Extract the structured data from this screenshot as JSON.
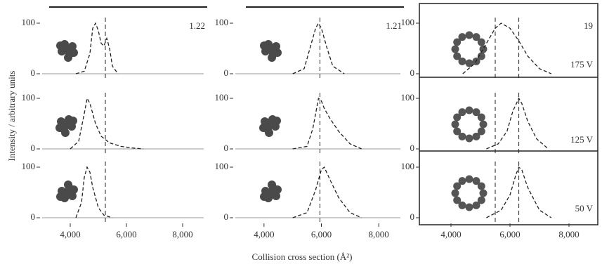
{
  "figure": {
    "ylabel": "Intensity / arbitrary units",
    "xlabel": "Collision cross section (Å²)"
  },
  "chart_data": [
    {
      "type": "line",
      "line_style": "dashed",
      "color": "#222",
      "annotations": [
        "1.22"
      ],
      "x": [
        4200,
        4500,
        4700,
        4800,
        4900,
        5000,
        5100,
        5200,
        5300,
        5400,
        5500,
        5700
      ],
      "values": [
        0,
        5,
        40,
        90,
        100,
        85,
        60,
        55,
        70,
        50,
        15,
        0
      ],
      "xlim": [
        3000,
        9000
      ],
      "ylim": [
        0,
        100
      ],
      "yticks": [
        0,
        100
      ],
      "reference_lines": [
        5250
      ]
    },
    {
      "type": "line",
      "line_style": "dashed",
      "color": "#222",
      "x": [
        4000,
        4300,
        4500,
        4600,
        4700,
        4900,
        5100,
        5400,
        5800,
        6200,
        6600
      ],
      "values": [
        0,
        15,
        70,
        100,
        90,
        50,
        25,
        12,
        5,
        2,
        0
      ],
      "xlim": [
        3000,
        9000
      ],
      "ylim": [
        0,
        100
      ],
      "yticks": [
        0,
        100
      ],
      "reference_lines": [
        5250
      ]
    },
    {
      "type": "line",
      "line_style": "dashed",
      "color": "#222",
      "x": [
        4200,
        4400,
        4500,
        4600,
        4700,
        4800,
        5000,
        5200,
        5500
      ],
      "values": [
        0,
        30,
        80,
        100,
        90,
        60,
        20,
        5,
        0
      ],
      "xlim": [
        3000,
        9000
      ],
      "ylim": [
        0,
        100
      ],
      "yticks": [
        0,
        100
      ],
      "xticks": [
        {
          "value": 4000,
          "label": "4,000"
        },
        {
          "value": 6000,
          "label": "6,000"
        },
        {
          "value": 8000,
          "label": "8,000"
        }
      ],
      "reference_lines": [
        5250
      ]
    },
    {
      "type": "line",
      "line_style": "dashed",
      "color": "#222",
      "annotations": [
        "1.21"
      ],
      "x": [
        5000,
        5400,
        5600,
        5800,
        5900,
        6000,
        6200,
        6400,
        6800
      ],
      "values": [
        0,
        10,
        50,
        90,
        100,
        90,
        50,
        15,
        0
      ],
      "xlim": [
        3000,
        9000
      ],
      "ylim": [
        0,
        100
      ],
      "yticks": [
        0,
        100
      ],
      "reference_lines": [
        5950
      ]
    },
    {
      "type": "line",
      "line_style": "dashed",
      "color": "#222",
      "x": [
        5000,
        5500,
        5700,
        5900,
        6000,
        6100,
        6300,
        6600,
        7000,
        7400
      ],
      "values": [
        0,
        5,
        40,
        100,
        95,
        80,
        60,
        35,
        10,
        0
      ],
      "xlim": [
        3000,
        9000
      ],
      "ylim": [
        0,
        100
      ],
      "yticks": [
        0,
        100
      ],
      "reference_lines": [
        5950
      ]
    },
    {
      "type": "line",
      "line_style": "dashed",
      "color": "#222",
      "x": [
        5000,
        5500,
        5800,
        6000,
        6100,
        6300,
        6600,
        7000,
        7400
      ],
      "values": [
        0,
        10,
        55,
        95,
        100,
        75,
        40,
        10,
        0
      ],
      "xlim": [
        3000,
        9000
      ],
      "ylim": [
        0,
        100
      ],
      "yticks": [
        0,
        100
      ],
      "xticks": [
        {
          "value": 4000,
          "label": "4,000"
        },
        {
          "value": 6000,
          "label": "6,000"
        },
        {
          "value": 8000,
          "label": "8,000"
        }
      ],
      "reference_lines": [
        5950
      ]
    },
    {
      "type": "line",
      "line_style": "dashed",
      "color": "#222",
      "annotations": [
        "19",
        "175 V"
      ],
      "x": [
        4400,
        4800,
        5200,
        5500,
        5700,
        6000,
        6300,
        6600,
        7000,
        7400
      ],
      "values": [
        0,
        20,
        60,
        90,
        100,
        90,
        65,
        35,
        10,
        0
      ],
      "xlim": [
        3000,
        9000
      ],
      "ylim": [
        0,
        100
      ],
      "yticks": [
        0,
        100
      ],
      "reference_lines": [
        5500,
        6300
      ]
    },
    {
      "type": "line",
      "line_style": "dashed",
      "color": "#222",
      "annotations": [
        "125 V"
      ],
      "x": [
        5200,
        5600,
        5900,
        6100,
        6300,
        6400,
        6600,
        6900,
        7300
      ],
      "values": [
        0,
        10,
        35,
        75,
        100,
        90,
        55,
        20,
        0
      ],
      "xlim": [
        3000,
        9000
      ],
      "ylim": [
        0,
        100
      ],
      "yticks": [
        0,
        100
      ],
      "reference_lines": [
        5500,
        6300
      ]
    },
    {
      "type": "line",
      "line_style": "dashed",
      "color": "#222",
      "annotations": [
        "50 V"
      ],
      "x": [
        5200,
        5700,
        6000,
        6200,
        6300,
        6400,
        6600,
        7000,
        7400
      ],
      "values": [
        0,
        15,
        45,
        85,
        100,
        95,
        60,
        15,
        0
      ],
      "xlim": [
        3000,
        9000
      ],
      "ylim": [
        0,
        100
      ],
      "yticks": [
        0,
        100
      ],
      "xticks": [
        {
          "value": 4000,
          "label": "4,000"
        },
        {
          "value": 6000,
          "label": "6,000"
        },
        {
          "value": 8000,
          "label": "8,000"
        }
      ],
      "reference_lines": [
        5500,
        6300
      ]
    }
  ]
}
